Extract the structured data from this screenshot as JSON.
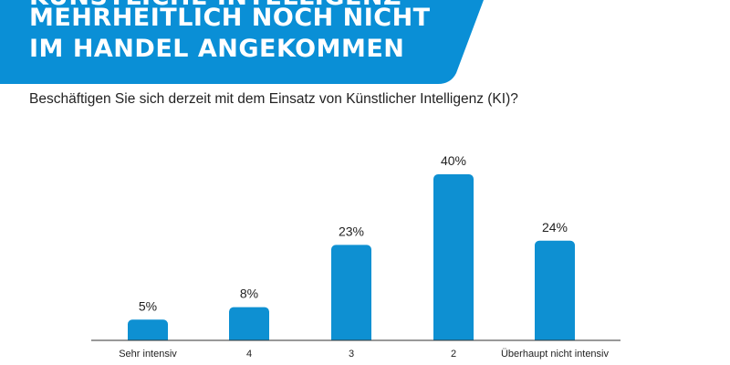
{
  "header": {
    "title_lines": [
      "KÜNSTLICHE INTELLIGENZ",
      "MEHRHEITLICH NOCH NICHT",
      "IM HANDEL ANGEKOMMEN"
    ]
  },
  "question": "Beschäftigen Sie sich derzeit mit dem Einsatz von Künstlicher Intelligenz (KI)?",
  "colors": {
    "banner": "#0a8fd6",
    "bar": "#0e90d2",
    "axis": "#333333"
  },
  "chart_data": {
    "type": "bar",
    "title": "Beschäftigen Sie sich derzeit mit dem Einsatz von Künstlicher Intelligenz (KI)?",
    "categories": [
      "Sehr intensiv",
      "4",
      "3",
      "2",
      "Überhaupt nicht intensiv"
    ],
    "values": [
      5,
      8,
      23,
      40,
      24
    ],
    "value_labels": [
      "5%",
      "8%",
      "23%",
      "40%",
      "24%"
    ],
    "unit": "%",
    "xlabel": "",
    "ylabel": "",
    "ylim": [
      0,
      40
    ],
    "grid": false,
    "legend": "none"
  }
}
